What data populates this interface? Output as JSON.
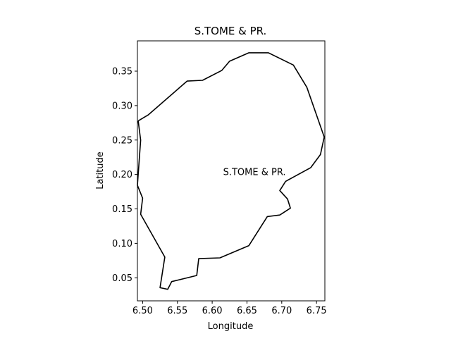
{
  "chart_data": {
    "type": "map-outline",
    "title": "S.TOME & PR.",
    "xlabel": "Longitude",
    "ylabel": "Latitude",
    "xlim": [
      6.4925,
      6.762
    ],
    "ylim": [
      0.0165,
      0.394
    ],
    "xticks": [
      6.5,
      6.55,
      6.6,
      6.65,
      6.7,
      6.75
    ],
    "xtick_labels": [
      "6.50",
      "6.55",
      "6.60",
      "6.65",
      "6.70",
      "6.75"
    ],
    "yticks": [
      0.05,
      0.1,
      0.15,
      0.2,
      0.25,
      0.3,
      0.35
    ],
    "ytick_labels": [
      "0.05",
      "0.10",
      "0.15",
      "0.20",
      "0.25",
      "0.30",
      "0.35"
    ],
    "grid": false,
    "line_color": "#000000",
    "annotation": {
      "text": "S.TOME & PR.",
      "lon": 6.6157,
      "lat": 0.2031
    },
    "outline": [
      [
        6.4936,
        0.2778
      ],
      [
        6.5083,
        0.2867
      ],
      [
        6.5639,
        0.3356
      ],
      [
        6.5861,
        0.3367
      ],
      [
        6.6139,
        0.3511
      ],
      [
        6.625,
        0.3644
      ],
      [
        6.6528,
        0.3767
      ],
      [
        6.6806,
        0.3767
      ],
      [
        6.7167,
        0.3589
      ],
      [
        6.7361,
        0.3267
      ],
      [
        6.7611,
        0.2544
      ],
      [
        6.7556,
        0.2289
      ],
      [
        6.7417,
        0.21
      ],
      [
        6.7056,
        0.19
      ],
      [
        6.6972,
        0.1767
      ],
      [
        6.7083,
        0.1644
      ],
      [
        6.7125,
        0.1511
      ],
      [
        6.6972,
        0.1411
      ],
      [
        6.6792,
        0.1389
      ],
      [
        6.6528,
        0.0967
      ],
      [
        6.6111,
        0.0789
      ],
      [
        6.5806,
        0.0778
      ],
      [
        6.5778,
        0.0533
      ],
      [
        6.5417,
        0.0444
      ],
      [
        6.5361,
        0.0333
      ],
      [
        6.525,
        0.0356
      ],
      [
        6.5319,
        0.08
      ],
      [
        6.4972,
        0.1422
      ],
      [
        6.5,
        0.1656
      ],
      [
        6.4925,
        0.1844
      ],
      [
        6.4972,
        0.25
      ],
      [
        6.4936,
        0.2778
      ]
    ]
  }
}
